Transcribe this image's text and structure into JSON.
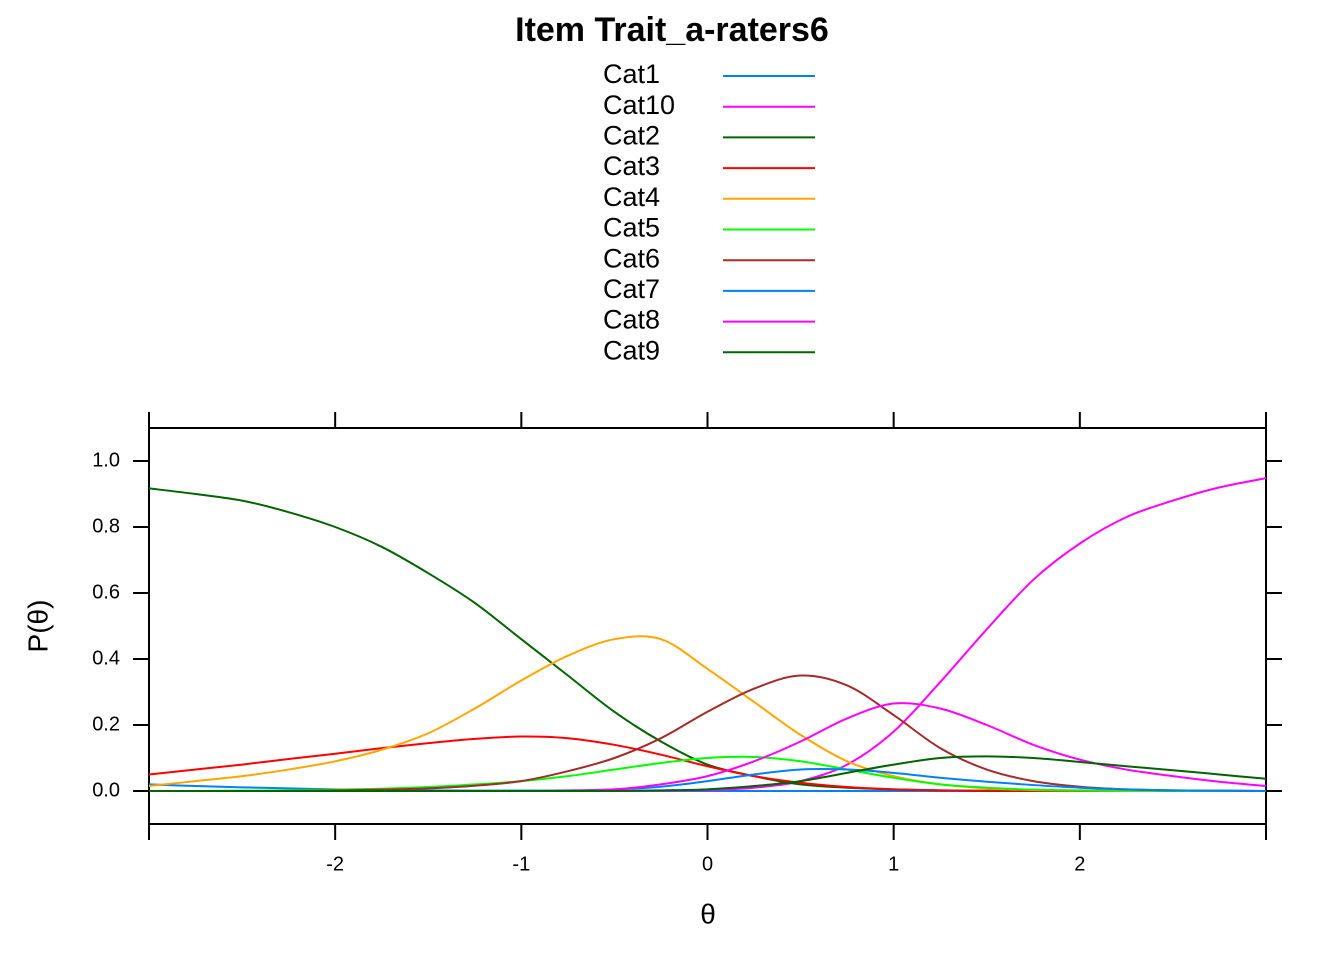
{
  "chart_data": {
    "type": "line",
    "title": "Item Trait_a-raters6",
    "x_label": "θ",
    "y_label": "P(θ)",
    "x": [
      -3,
      -2.75,
      -2.5,
      -2.25,
      -2,
      -1.75,
      -1.5,
      -1.25,
      -1,
      -0.75,
      -0.5,
      -0.25,
      0,
      0.25,
      0.5,
      0.75,
      1,
      1.25,
      1.5,
      1.75,
      2,
      2.25,
      2.5,
      2.75,
      3
    ],
    "series": [
      {
        "name": "Cat1",
        "color": "#0080ff",
        "values": [
          0.02,
          0.015,
          0.011,
          0.008,
          0.005,
          0.003,
          0.002,
          0.001,
          0.001,
          0,
          0,
          0,
          0,
          0,
          0,
          0,
          0,
          0,
          0,
          0,
          0,
          0,
          0,
          0,
          0
        ]
      },
      {
        "name": "Cat10",
        "color": "#ff00ff",
        "values": [
          0,
          0,
          0,
          0,
          0,
          0,
          0,
          0,
          0,
          0,
          0,
          0.001,
          0.003,
          0.01,
          0.03,
          0.08,
          0.18,
          0.33,
          0.49,
          0.64,
          0.75,
          0.83,
          0.88,
          0.92,
          0.948
        ]
      },
      {
        "name": "Cat2",
        "color": "#006400",
        "values": [
          0.917,
          0.9,
          0.88,
          0.845,
          0.8,
          0.74,
          0.66,
          0.57,
          0.46,
          0.35,
          0.24,
          0.15,
          0.08,
          0.045,
          0.02,
          0.01,
          0.005,
          0.002,
          0,
          0,
          0,
          0,
          0,
          0,
          0
        ]
      },
      {
        "name": "Cat3",
        "color": "#ff0000",
        "values": [
          0.05,
          0.065,
          0.08,
          0.097,
          0.113,
          0.13,
          0.145,
          0.158,
          0.165,
          0.16,
          0.14,
          0.11,
          0.075,
          0.045,
          0.025,
          0.012,
          0.005,
          0.002,
          0.001,
          0,
          0,
          0,
          0,
          0,
          0
        ]
      },
      {
        "name": "Cat4",
        "color": "#ffa500",
        "values": [
          0.015,
          0.03,
          0.045,
          0.065,
          0.09,
          0.125,
          0.175,
          0.25,
          0.335,
          0.41,
          0.46,
          0.46,
          0.37,
          0.27,
          0.17,
          0.09,
          0.045,
          0.02,
          0.008,
          0.003,
          0.001,
          0,
          0,
          0,
          0
        ]
      },
      {
        "name": "Cat5",
        "color": "#00ff00",
        "values": [
          0,
          0,
          0.001,
          0.002,
          0.004,
          0.007,
          0.012,
          0.02,
          0.03,
          0.045,
          0.065,
          0.085,
          0.1,
          0.103,
          0.09,
          0.065,
          0.04,
          0.02,
          0.01,
          0.004,
          0.002,
          0.001,
          0,
          0,
          0
        ]
      },
      {
        "name": "Cat6",
        "color": "#a52a2a",
        "values": [
          0,
          0,
          0,
          0,
          0.002,
          0.004,
          0.008,
          0.016,
          0.03,
          0.06,
          0.1,
          0.16,
          0.24,
          0.31,
          0.35,
          0.32,
          0.23,
          0.13,
          0.065,
          0.03,
          0.013,
          0.005,
          0.002,
          0.001,
          0
        ]
      },
      {
        "name": "Cat7",
        "color": "#0080ff",
        "values": [
          0,
          0,
          0,
          0,
          0,
          0,
          0,
          0,
          0.001,
          0.002,
          0.005,
          0.013,
          0.03,
          0.05,
          0.065,
          0.065,
          0.055,
          0.04,
          0.028,
          0.018,
          0.01,
          0.005,
          0.002,
          0.001,
          0
        ]
      },
      {
        "name": "Cat8",
        "color": "#ff00ff",
        "values": [
          0,
          0,
          0,
          0,
          0,
          0,
          0,
          0,
          0,
          0.001,
          0.005,
          0.02,
          0.045,
          0.09,
          0.15,
          0.22,
          0.265,
          0.25,
          0.2,
          0.14,
          0.095,
          0.065,
          0.045,
          0.028,
          0.015
        ]
      },
      {
        "name": "Cat9",
        "color": "#006400",
        "values": [
          0,
          0,
          0,
          0,
          0,
          0,
          0,
          0,
          0,
          0,
          0,
          0.002,
          0.005,
          0.015,
          0.03,
          0.055,
          0.08,
          0.1,
          0.105,
          0.1,
          0.088,
          0.075,
          0.063,
          0.05,
          0.037
        ]
      }
    ],
    "xlim": [
      -3,
      3
    ],
    "xticks": [
      -2,
      -1,
      0,
      1,
      2
    ],
    "ylim": [
      -0.1,
      1.1
    ],
    "yticks": [
      {
        "value": 0,
        "label": "0.0"
      },
      {
        "value": 0.2,
        "label": "0.2"
      },
      {
        "value": 0.4,
        "label": "0.4"
      },
      {
        "value": 0.6,
        "label": "0.6"
      },
      {
        "value": 0.8,
        "label": "0.8"
      },
      {
        "value": 1,
        "label": "1.0"
      }
    ]
  }
}
